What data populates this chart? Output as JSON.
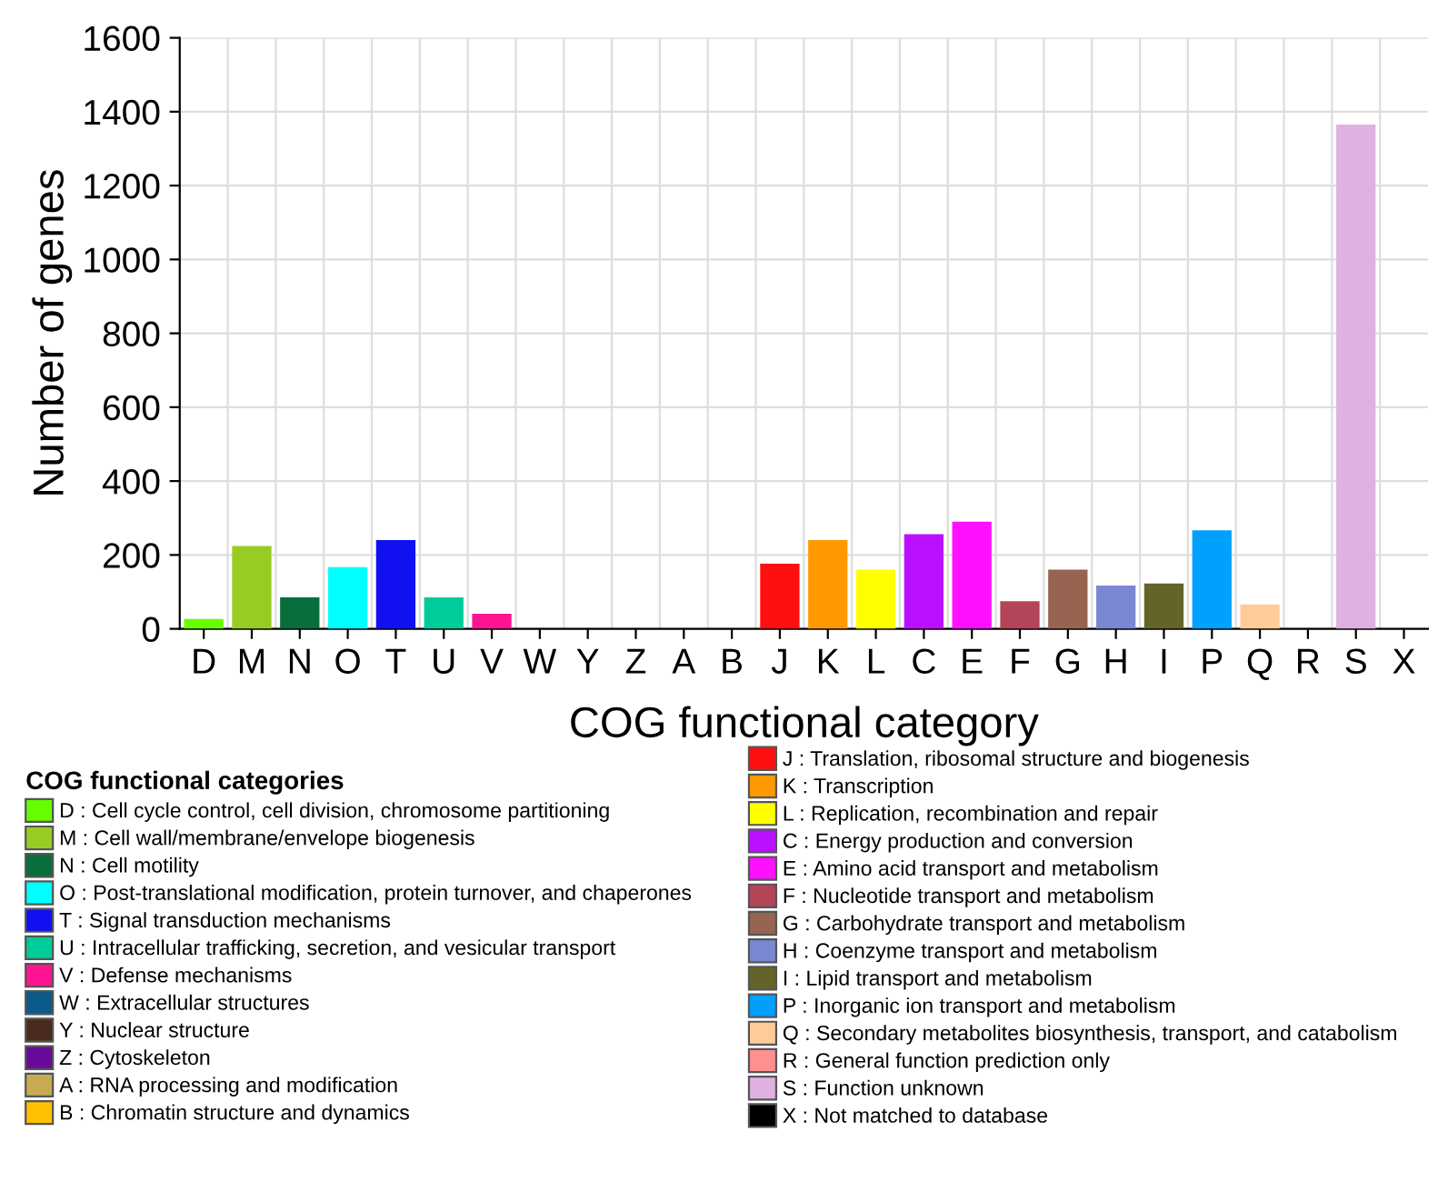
{
  "chart_data": {
    "type": "bar",
    "xlabel": "COG functional category",
    "ylabel": "Number of genes",
    "legend_title": "COG functional categories",
    "categories": [
      "D",
      "M",
      "N",
      "O",
      "T",
      "U",
      "V",
      "W",
      "Y",
      "Z",
      "A",
      "B",
      "J",
      "K",
      "L",
      "C",
      "E",
      "F",
      "G",
      "H",
      "I",
      "P",
      "Q",
      "R",
      "S",
      "X"
    ],
    "ylim": [
      0,
      1600
    ],
    "yticks": [
      0,
      200,
      400,
      600,
      800,
      1000,
      1200,
      1400,
      1600
    ],
    "grid": true,
    "legend": "bottom",
    "series": [
      {
        "name": "D : Cell cycle control, cell division, chromosome partitioning",
        "color": "#66ff00",
        "values": [
          27,
          null,
          null,
          null,
          null,
          null,
          null,
          null,
          null,
          null,
          null,
          null,
          null,
          null,
          null,
          null,
          null,
          null,
          null,
          null,
          null,
          null,
          null,
          null,
          null,
          null
        ]
      },
      {
        "name": "M : Cell wall/membrane/envelope biogenesis",
        "color": "#99cc22",
        "values": [
          null,
          224,
          null,
          null,
          null,
          null,
          null,
          null,
          null,
          null,
          null,
          null,
          null,
          null,
          null,
          null,
          null,
          null,
          null,
          null,
          null,
          null,
          null,
          null,
          null,
          null
        ]
      },
      {
        "name": "N : Cell motility",
        "color": "#0a6e3c",
        "values": [
          null,
          null,
          85,
          null,
          null,
          null,
          null,
          null,
          null,
          null,
          null,
          null,
          null,
          null,
          null,
          null,
          null,
          null,
          null,
          null,
          null,
          null,
          null,
          null,
          null,
          null
        ]
      },
      {
        "name": "O : Post-translational modification, protein turnover, and chaperones",
        "color": "#00ffff",
        "values": [
          null,
          null,
          null,
          167,
          null,
          null,
          null,
          null,
          null,
          null,
          null,
          null,
          null,
          null,
          null,
          null,
          null,
          null,
          null,
          null,
          null,
          null,
          null,
          null,
          null,
          null
        ]
      },
      {
        "name": "T : Signal transduction mechanisms",
        "color": "#1010f0",
        "values": [
          null,
          null,
          null,
          null,
          240,
          null,
          null,
          null,
          null,
          null,
          null,
          null,
          null,
          null,
          null,
          null,
          null,
          null,
          null,
          null,
          null,
          null,
          null,
          null,
          null,
          null
        ]
      },
      {
        "name": "U : Intracellular trafficking, secretion, and vesicular transport",
        "color": "#00cc99",
        "values": [
          null,
          null,
          null,
          null,
          null,
          85,
          null,
          null,
          null,
          null,
          null,
          null,
          null,
          null,
          null,
          null,
          null,
          null,
          null,
          null,
          null,
          null,
          null,
          null,
          null,
          null
        ]
      },
      {
        "name": "V : Defense mechanisms",
        "color": "#ff1493",
        "values": [
          null,
          null,
          null,
          null,
          null,
          null,
          41,
          null,
          null,
          null,
          null,
          null,
          null,
          null,
          null,
          null,
          null,
          null,
          null,
          null,
          null,
          null,
          null,
          null,
          null,
          null
        ]
      },
      {
        "name": "W : Extracellular structures",
        "color": "#0a5a8c",
        "values": [
          null,
          null,
          null,
          null,
          null,
          null,
          null,
          0,
          null,
          null,
          null,
          null,
          null,
          null,
          null,
          null,
          null,
          null,
          null,
          null,
          null,
          null,
          null,
          null,
          null,
          null
        ]
      },
      {
        "name": "Y : Nuclear structure",
        "color": "#4a2a1e",
        "values": [
          null,
          null,
          null,
          null,
          null,
          null,
          null,
          null,
          0,
          null,
          null,
          null,
          null,
          null,
          null,
          null,
          null,
          null,
          null,
          null,
          null,
          null,
          null,
          null,
          null,
          null
        ]
      },
      {
        "name": "Z : Cytoskeleton",
        "color": "#6a0a9a",
        "values": [
          null,
          null,
          null,
          null,
          null,
          null,
          null,
          null,
          null,
          0,
          null,
          null,
          null,
          null,
          null,
          null,
          null,
          null,
          null,
          null,
          null,
          null,
          null,
          null,
          null,
          null
        ]
      },
      {
        "name": "A : RNA processing and modification",
        "color": "#c8aa50",
        "values": [
          null,
          null,
          null,
          null,
          null,
          null,
          null,
          null,
          null,
          null,
          0,
          null,
          null,
          null,
          null,
          null,
          null,
          null,
          null,
          null,
          null,
          null,
          null,
          null,
          null,
          null
        ]
      },
      {
        "name": "B : Chromatin structure and dynamics",
        "color": "#ffc000",
        "values": [
          null,
          null,
          null,
          null,
          null,
          null,
          null,
          null,
          null,
          null,
          null,
          0,
          null,
          null,
          null,
          null,
          null,
          null,
          null,
          null,
          null,
          null,
          null,
          null,
          null,
          null
        ]
      },
      {
        "name": "J : Translation, ribosomal structure and biogenesis",
        "color": "#ff1010",
        "values": [
          null,
          null,
          null,
          null,
          null,
          null,
          null,
          null,
          null,
          null,
          null,
          null,
          176,
          null,
          null,
          null,
          null,
          null,
          null,
          null,
          null,
          null,
          null,
          null,
          null,
          null
        ]
      },
      {
        "name": "K : Transcription",
        "color": "#ff9900",
        "values": [
          null,
          null,
          null,
          null,
          null,
          null,
          null,
          null,
          null,
          null,
          null,
          null,
          null,
          240,
          null,
          null,
          null,
          null,
          null,
          null,
          null,
          null,
          null,
          null,
          null,
          null
        ]
      },
      {
        "name": "L : Replication, recombination and repair",
        "color": "#ffff00",
        "values": [
          null,
          null,
          null,
          null,
          null,
          null,
          null,
          null,
          null,
          null,
          null,
          null,
          null,
          null,
          160,
          null,
          null,
          null,
          null,
          null,
          null,
          null,
          null,
          null,
          null,
          null
        ]
      },
      {
        "name": "C : Energy production and conversion",
        "color": "#bb10ff",
        "values": [
          null,
          null,
          null,
          null,
          null,
          null,
          null,
          null,
          null,
          null,
          null,
          null,
          null,
          null,
          null,
          256,
          null,
          null,
          null,
          null,
          null,
          null,
          null,
          null,
          null,
          null
        ]
      },
      {
        "name": "E : Amino acid transport and metabolism",
        "color": "#ff10ff",
        "values": [
          null,
          null,
          null,
          null,
          null,
          null,
          null,
          null,
          null,
          null,
          null,
          null,
          null,
          null,
          null,
          null,
          290,
          null,
          null,
          null,
          null,
          null,
          null,
          null,
          null,
          null
        ]
      },
      {
        "name": "F : Nucleotide transport and metabolism",
        "color": "#b44458",
        "values": [
          null,
          null,
          null,
          null,
          null,
          null,
          null,
          null,
          null,
          null,
          null,
          null,
          null,
          null,
          null,
          null,
          null,
          75,
          null,
          null,
          null,
          null,
          null,
          null,
          null,
          null
        ]
      },
      {
        "name": "G : Carbohydrate transport and metabolism",
        "color": "#966450",
        "values": [
          null,
          null,
          null,
          null,
          null,
          null,
          null,
          null,
          null,
          null,
          null,
          null,
          null,
          null,
          null,
          null,
          null,
          null,
          160,
          null,
          null,
          null,
          null,
          null,
          null,
          null
        ]
      },
      {
        "name": "H : Coenzyme transport and metabolism",
        "color": "#7a88d4",
        "values": [
          null,
          null,
          null,
          null,
          null,
          null,
          null,
          null,
          null,
          null,
          null,
          null,
          null,
          null,
          null,
          null,
          null,
          null,
          null,
          117,
          null,
          null,
          null,
          null,
          null,
          null
        ]
      },
      {
        "name": "I : Lipid transport and metabolism",
        "color": "#646428",
        "values": [
          null,
          null,
          null,
          null,
          null,
          null,
          null,
          null,
          null,
          null,
          null,
          null,
          null,
          null,
          null,
          null,
          null,
          null,
          null,
          null,
          123,
          null,
          null,
          null,
          null,
          null
        ]
      },
      {
        "name": "P : Inorganic ion transport and metabolism",
        "color": "#00a0ff",
        "values": [
          null,
          null,
          null,
          null,
          null,
          null,
          null,
          null,
          null,
          null,
          null,
          null,
          null,
          null,
          null,
          null,
          null,
          null,
          null,
          null,
          null,
          267,
          null,
          null,
          null,
          null
        ]
      },
      {
        "name": "Q : Secondary metabolites biosynthesis, transport, and catabolism",
        "color": "#ffcc99",
        "values": [
          null,
          null,
          null,
          null,
          null,
          null,
          null,
          null,
          null,
          null,
          null,
          null,
          null,
          null,
          null,
          null,
          null,
          null,
          null,
          null,
          null,
          null,
          66,
          null,
          null,
          null
        ]
      },
      {
        "name": "R : General function prediction only",
        "color": "#ff9090",
        "values": [
          null,
          null,
          null,
          null,
          null,
          null,
          null,
          null,
          null,
          null,
          null,
          null,
          null,
          null,
          null,
          null,
          null,
          null,
          null,
          null,
          null,
          null,
          null,
          0,
          null,
          null
        ]
      },
      {
        "name": "S : Function unknown",
        "color": "#e0b0e0",
        "values": [
          null,
          null,
          null,
          null,
          null,
          null,
          null,
          null,
          null,
          null,
          null,
          null,
          null,
          null,
          null,
          null,
          null,
          null,
          null,
          null,
          null,
          null,
          null,
          null,
          1365,
          null
        ]
      },
      {
        "name": "X : Not matched to database",
        "color": "#000000",
        "values": [
          null,
          null,
          null,
          null,
          null,
          null,
          null,
          null,
          null,
          null,
          null,
          null,
          null,
          null,
          null,
          null,
          null,
          null,
          null,
          null,
          null,
          null,
          null,
          null,
          null,
          0
        ]
      }
    ]
  }
}
